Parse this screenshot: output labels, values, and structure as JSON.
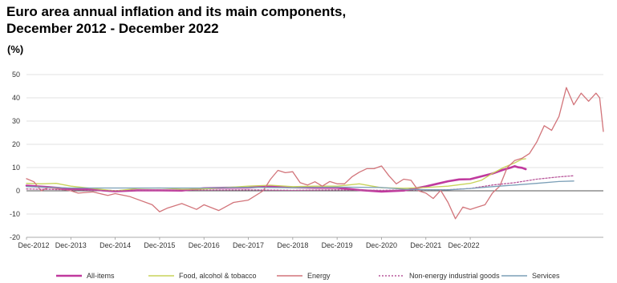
{
  "title_line1": "Euro area annual inflation and its main components,",
  "title_line2": "December 2012 - December 2022",
  "unit": "(%)",
  "chart_data": {
    "type": "line",
    "title": "Euro area annual inflation and its main components, December 2012 - December 2022",
    "ylabel": "(%)",
    "xlabel": "",
    "ylim": [
      -20,
      50
    ],
    "yticks": [
      -20,
      -10,
      0,
      10,
      20,
      30,
      40,
      50
    ],
    "x_ticks": [
      "Dec-2012",
      "Dec-2013",
      "Dec-2014",
      "Dec-2015",
      "Dec-2016",
      "Dec-2017",
      "Dec-2018",
      "Dec-2019",
      "Dec-2020",
      "Dec-2021",
      "Dec-2022"
    ],
    "grid": "horizontal",
    "legend_position": "bottom",
    "x_index_note": "monthly observations Dec-2012 to Dec-2022",
    "series": [
      {
        "name": "All-items",
        "color": "#c0399e",
        "style": "solid-thick",
        "points": [
          [
            0,
            2.2
          ],
          [
            6,
            1.6
          ],
          [
            12,
            0.8
          ],
          [
            18,
            0.5
          ],
          [
            24,
            -0.2
          ],
          [
            30,
            0.2
          ],
          [
            36,
            0.2
          ],
          [
            42,
            0.1
          ],
          [
            48,
            1.1
          ],
          [
            54,
            1.3
          ],
          [
            60,
            1.4
          ],
          [
            66,
            2.0
          ],
          [
            72,
            1.5
          ],
          [
            78,
            1.3
          ],
          [
            84,
            1.3
          ],
          [
            90,
            0.3
          ],
          [
            96,
            -0.3
          ],
          [
            102,
            0.1
          ],
          [
            108,
            1.9
          ],
          [
            111,
            3.0
          ],
          [
            114,
            4.1
          ],
          [
            117,
            4.9
          ],
          [
            120,
            5.0
          ],
          [
            123,
            6.2
          ],
          [
            126,
            7.4
          ],
          [
            129,
            9.1
          ],
          [
            131,
            10.0
          ],
          [
            132,
            10.6
          ],
          [
            133,
            10.1
          ],
          [
            134,
            9.9
          ],
          [
            135,
            9.3
          ]
        ]
      },
      {
        "name": "Food, alcohol & tobacco",
        "color": "#c8d35a",
        "style": "solid",
        "points": [
          [
            0,
            3.2
          ],
          [
            4,
            3.0
          ],
          [
            8,
            3.2
          ],
          [
            12,
            2.0
          ],
          [
            18,
            1.0
          ],
          [
            24,
            0.0
          ],
          [
            30,
            1.0
          ],
          [
            36,
            1.2
          ],
          [
            42,
            0.7
          ],
          [
            48,
            0.8
          ],
          [
            54,
            1.4
          ],
          [
            60,
            2.0
          ],
          [
            66,
            2.4
          ],
          [
            72,
            1.8
          ],
          [
            78,
            2.0
          ],
          [
            84,
            2.0
          ],
          [
            90,
            3.0
          ],
          [
            96,
            1.3
          ],
          [
            102,
            1.1
          ],
          [
            108,
            1.4
          ],
          [
            114,
            2.0
          ],
          [
            120,
            3.2
          ],
          [
            123,
            4.5
          ],
          [
            126,
            7.5
          ],
          [
            129,
            10.0
          ],
          [
            132,
            12.0
          ],
          [
            134,
            13.6
          ],
          [
            135,
            13.8
          ]
        ]
      },
      {
        "name": "Energy",
        "color": "#d2747a",
        "style": "solid",
        "points": [
          [
            0,
            5.2
          ],
          [
            2,
            3.9
          ],
          [
            4,
            0.0
          ],
          [
            6,
            1.5
          ],
          [
            12,
            0.0
          ],
          [
            14,
            -1.0
          ],
          [
            18,
            -0.5
          ],
          [
            22,
            -2.0
          ],
          [
            24,
            -1.2
          ],
          [
            28,
            -2.5
          ],
          [
            34,
            -6.0
          ],
          [
            36,
            -9.0
          ],
          [
            38,
            -7.5
          ],
          [
            42,
            -5.5
          ],
          [
            46,
            -8.0
          ],
          [
            48,
            -6.0
          ],
          [
            52,
            -8.5
          ],
          [
            56,
            -5.0
          ],
          [
            60,
            -4.0
          ],
          [
            64,
            0.0
          ],
          [
            66,
            5.0
          ],
          [
            68,
            8.8
          ],
          [
            70,
            7.8
          ],
          [
            72,
            8.2
          ],
          [
            74,
            3.5
          ],
          [
            76,
            2.5
          ],
          [
            78,
            3.9
          ],
          [
            80,
            2.0
          ],
          [
            82,
            4.0
          ],
          [
            84,
            3.0
          ],
          [
            86,
            3.0
          ],
          [
            88,
            6.0
          ],
          [
            90,
            8.0
          ],
          [
            92,
            9.5
          ],
          [
            94,
            9.5
          ],
          [
            96,
            10.7
          ],
          [
            98,
            6.5
          ],
          [
            100,
            3.0
          ],
          [
            102,
            5.0
          ],
          [
            104,
            4.5
          ],
          [
            106,
            0.0
          ],
          [
            108,
            -1.0
          ],
          [
            110,
            -3.3
          ],
          [
            112,
            0.2
          ],
          [
            114,
            -5.0
          ],
          [
            116,
            -12.0
          ],
          [
            118,
            -7.0
          ],
          [
            120,
            -8.0
          ],
          [
            122,
            -7.0
          ],
          [
            124,
            -6.0
          ],
          [
            126,
            -1.0
          ],
          [
            128,
            2.0
          ],
          [
            130,
            10.0
          ],
          [
            132,
            13.0
          ],
          [
            134,
            14.0
          ],
          [
            136,
            16.0
          ],
          [
            138,
            21.0
          ],
          [
            140,
            28.0
          ],
          [
            142,
            26.0
          ],
          [
            144,
            32.0
          ],
          [
            146,
            44.4
          ],
          [
            148,
            37.0
          ],
          [
            150,
            42.0
          ],
          [
            152,
            38.5
          ],
          [
            154,
            42.0
          ],
          [
            155,
            40.0
          ],
          [
            156,
            25.5
          ]
        ]
      },
      {
        "name": "Non-energy industrial goods",
        "color": "#b8569a",
        "style": "dotted",
        "points": [
          [
            0,
            0.8
          ],
          [
            12,
            0.4
          ],
          [
            24,
            0.0
          ],
          [
            36,
            0.3
          ],
          [
            48,
            0.3
          ],
          [
            60,
            0.4
          ],
          [
            72,
            0.2
          ],
          [
            84,
            0.4
          ],
          [
            96,
            0.2
          ],
          [
            108,
            0.5
          ],
          [
            114,
            0.5
          ],
          [
            120,
            1.0
          ],
          [
            126,
            2.5
          ],
          [
            132,
            3.5
          ],
          [
            138,
            5.0
          ],
          [
            144,
            6.0
          ],
          [
            148,
            6.5
          ]
        ]
      },
      {
        "name": "Services",
        "color": "#7b9fb7",
        "style": "solid",
        "points": [
          [
            0,
            1.8
          ],
          [
            12,
            1.2
          ],
          [
            24,
            1.2
          ],
          [
            36,
            1.2
          ],
          [
            48,
            1.2
          ],
          [
            60,
            1.5
          ],
          [
            72,
            1.3
          ],
          [
            84,
            1.6
          ],
          [
            96,
            1.4
          ],
          [
            102,
            0.7
          ],
          [
            108,
            0.5
          ],
          [
            114,
            0.4
          ],
          [
            120,
            1.0
          ],
          [
            126,
            1.8
          ],
          [
            132,
            2.5
          ],
          [
            138,
            3.2
          ],
          [
            144,
            4.0
          ],
          [
            148,
            4.2
          ]
        ]
      }
    ]
  }
}
